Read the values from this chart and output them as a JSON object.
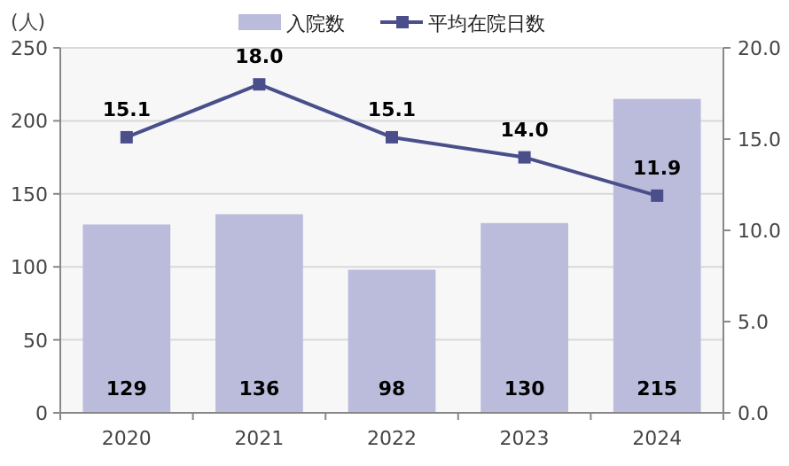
{
  "chart_data": {
    "type": "bar",
    "ylabel": "(人)",
    "categories": [
      "2020",
      "2021",
      "2022",
      "2023",
      "2024"
    ],
    "series": [
      {
        "name": "入院数",
        "color": "#bbbcdc",
        "values": [
          129,
          136,
          98,
          130,
          215
        ],
        "value_labels": [
          "129",
          "136",
          "98",
          "130",
          "215"
        ]
      },
      {
        "name": "平均在院日数",
        "type": "line",
        "axis": "y2",
        "color": "#4a4f8c",
        "marker": "square",
        "values": [
          15.1,
          18.0,
          15.1,
          14.0,
          11.9
        ],
        "value_labels": [
          "15.1",
          "18.0",
          "15.1",
          "14.0",
          "11.9"
        ]
      }
    ],
    "ylim": [
      0,
      250
    ],
    "yticks": [
      0,
      50,
      100,
      150,
      200,
      250
    ],
    "y2lim": [
      0,
      20
    ],
    "y2ticks": [
      {
        "value": 0,
        "label": "0.0"
      },
      {
        "value": 5,
        "label": "5.0"
      },
      {
        "value": 10,
        "label": "10.0"
      },
      {
        "value": 15,
        "label": "15.0"
      },
      {
        "value": 20,
        "label": "20.0"
      }
    ],
    "grid": "y",
    "legend": "top"
  }
}
